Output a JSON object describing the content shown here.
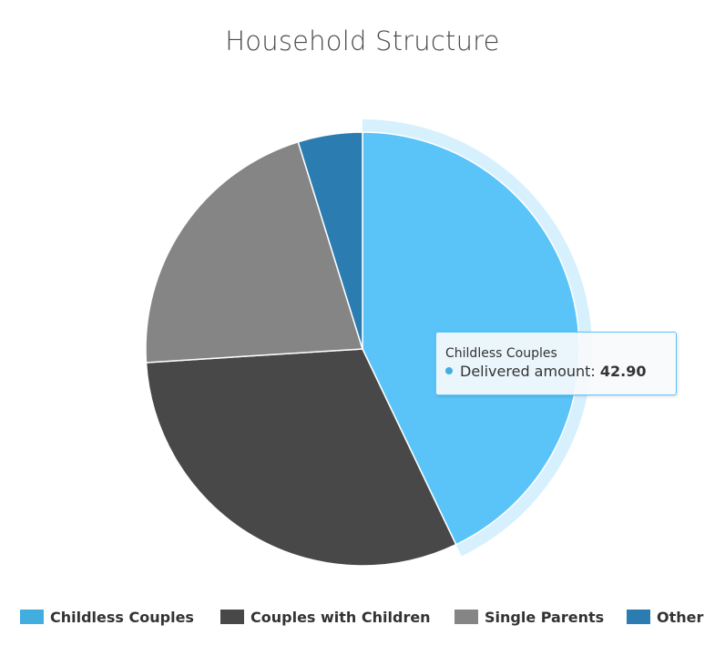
{
  "chart_data": {
    "type": "pie",
    "title": "Household Structure",
    "series_name": "Delivered amount",
    "slices": [
      {
        "label": "Childless Couples",
        "value": 42.9,
        "color": "#5ac4f9"
      },
      {
        "label": "Couples with Children",
        "value": 31.1,
        "color": "#484848"
      },
      {
        "label": "Single Parents",
        "value": 21.2,
        "color": "#858585"
      },
      {
        "label": "Other",
        "value": 4.8,
        "color": "#2b7cb0"
      }
    ],
    "highlighted": "Childless Couples",
    "legend_position": "bottom"
  },
  "tooltip": {
    "title": "Childless Couples",
    "series": "Delivered amount",
    "separator": ": ",
    "value": "42.90"
  },
  "legend": {
    "colors": {
      "childless_couples": "#42aee0",
      "couples_with_children": "#484848",
      "single_parents": "#858585",
      "other": "#2b7cb0"
    }
  }
}
